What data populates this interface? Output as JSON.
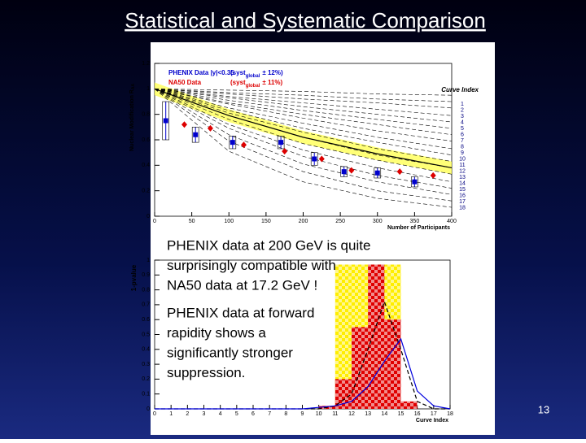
{
  "slide": {
    "title": "Statistical and Systematic Comparison",
    "page_number": "13",
    "annotations": [
      {
        "lines": [
          "PHENIX data at 200 GeV is quite",
          "surprisingly compatible with",
          "NA50 data at 17.2 GeV !"
        ]
      },
      {
        "lines": [
          "PHENIX data at forward",
          "rapidity shows a",
          "significantly stronger",
          "suppression."
        ]
      }
    ]
  },
  "chart_data": [
    {
      "type": "scatter",
      "x_label": "Number of Participants",
      "y_label": "Nuclear Modification R",
      "y_label_sub": "AA",
      "xlim": [
        0,
        400
      ],
      "ylim": [
        0,
        1.2
      ],
      "xticks": [
        0,
        50,
        100,
        150,
        200,
        250,
        300,
        350,
        400
      ],
      "yticks": [
        0,
        0.2,
        0.4,
        0.6,
        0.8,
        1,
        1.2
      ],
      "series": [
        {
          "name": "PHENIX Data |y|<0.35",
          "color": "#0000cc",
          "marker": "square",
          "x": [
            15,
            55,
            105,
            170,
            215,
            255,
            300,
            350
          ],
          "values": [
            0.75,
            0.64,
            0.58,
            0.58,
            0.45,
            0.35,
            0.34,
            0.27
          ],
          "errors": [
            0.15,
            0.06,
            0.05,
            0.05,
            0.05,
            0.04,
            0.04,
            0.04
          ]
        },
        {
          "name": "NA50 Data",
          "color": "#dd0000",
          "marker": "diamond",
          "x": [
            40,
            75,
            120,
            175,
            225,
            265,
            330,
            375
          ],
          "values": [
            0.72,
            0.69,
            0.56,
            0.51,
            0.45,
            0.36,
            0.35,
            0.32
          ]
        }
      ],
      "legend_notes": [
        {
          "text": "(syst",
          "sub": "global",
          "rest": "± 12%)"
        },
        {
          "text": "(syst",
          "sub": "global",
          "rest": "± 11%)"
        }
      ],
      "fit": {
        "x": [
          0,
          100,
          200,
          300,
          400
        ],
        "values": [
          1,
          0.79,
          0.62,
          0.49,
          0.38
        ],
        "band_lower": [
          0.95,
          0.74,
          0.57,
          0.44,
          0.33
        ],
        "band_upper": [
          1.05,
          0.84,
          0.67,
          0.54,
          0.43
        ],
        "color": "#000000",
        "band_color": "#ffff55"
      },
      "curves_title": "Curve Index",
      "curves": {
        "x": [
          0,
          100,
          200,
          300,
          400
        ],
        "color": "#000000",
        "label_color": "#000080",
        "series": [
          {
            "name": "1",
            "values": [
              1,
              0.99,
              0.98,
              0.96,
              0.95
            ]
          },
          {
            "name": "2",
            "values": [
              1,
              0.97,
              0.95,
              0.92,
              0.9
            ]
          },
          {
            "name": "3",
            "values": [
              1,
              0.96,
              0.92,
              0.89,
              0.85
            ]
          },
          {
            "name": "4",
            "values": [
              1,
              0.94,
              0.89,
              0.84,
              0.79
            ]
          },
          {
            "name": "5",
            "values": [
              1,
              0.93,
              0.86,
              0.8,
              0.74
            ]
          },
          {
            "name": "6",
            "values": [
              1,
              0.91,
              0.83,
              0.76,
              0.69
            ]
          },
          {
            "name": "7",
            "values": [
              1,
              0.89,
              0.8,
              0.72,
              0.64
            ]
          },
          {
            "name": "8",
            "values": [
              1,
              0.88,
              0.77,
              0.67,
              0.59
            ]
          },
          {
            "name": "9",
            "values": [
              1,
              0.85,
              0.73,
              0.62,
              0.53
            ]
          },
          {
            "name": "10",
            "values": [
              1,
              0.83,
              0.69,
              0.58,
              0.48
            ]
          },
          {
            "name": "11",
            "values": [
              1,
              0.81,
              0.66,
              0.53,
              0.43
            ]
          },
          {
            "name": "12",
            "values": [
              1,
              0.79,
              0.62,
              0.48,
              0.38
            ]
          },
          {
            "name": "13",
            "values": [
              1,
              0.76,
              0.57,
              0.44,
              0.33
            ]
          },
          {
            "name": "14",
            "values": [
              1,
              0.72,
              0.52,
              0.38,
              0.27
            ]
          },
          {
            "name": "15",
            "values": [
              1,
              0.69,
              0.47,
              0.32,
              0.22
            ]
          },
          {
            "name": "16",
            "values": [
              1,
              0.64,
              0.41,
              0.27,
              0.17
            ]
          },
          {
            "name": "17",
            "values": [
              1,
              0.59,
              0.35,
              0.2,
              0.12
            ]
          },
          {
            "name": "18",
            "values": [
              1,
              0.51,
              0.27,
              0.14,
              0.07
            ]
          }
        ]
      }
    },
    {
      "type": "histogram",
      "x_label": "Curve Index",
      "y_label": "1-pvalue",
      "xlim": [
        0,
        18
      ],
      "ylim": [
        0,
        1
      ],
      "xticks": [
        0,
        1,
        2,
        3,
        4,
        5,
        6,
        7,
        8,
        9,
        10,
        11,
        12,
        13,
        14,
        15,
        16,
        17,
        18
      ],
      "yticks": [
        0,
        0.1,
        0.2,
        0.3,
        0.4,
        0.5,
        0.6,
        0.7,
        0.8,
        0.9,
        1
      ],
      "series": [
        {
          "type": "bar",
          "color": "#ffee00",
          "x": [
            11,
            12,
            13,
            14
          ],
          "values": [
            0.97,
            0.97,
            0.97,
            0.97
          ]
        },
        {
          "type": "bar",
          "color": "#e00000",
          "x": [
            10,
            11,
            12,
            13,
            14,
            15
          ],
          "values": [
            0.02,
            0.2,
            0.55,
            0.97,
            0.6,
            0.05
          ]
        },
        {
          "type": "line",
          "color": "#000000",
          "dashed": true,
          "x": [
            0,
            1,
            2,
            3,
            4,
            5,
            6,
            7,
            8,
            9,
            10,
            11,
            12,
            13,
            14,
            15,
            16,
            17,
            18
          ],
          "values": [
            0,
            0,
            0,
            0,
            0,
            0,
            0,
            0,
            0,
            0,
            0,
            0.02,
            0.1,
            0.4,
            0.72,
            0.4,
            0.05,
            0,
            0
          ]
        },
        {
          "type": "line",
          "color": "#0000dd",
          "dashed": false,
          "x": [
            0,
            1,
            2,
            3,
            4,
            5,
            6,
            7,
            8,
            9,
            10,
            11,
            12,
            13,
            14,
            15,
            16,
            17,
            18
          ],
          "values": [
            0,
            0,
            0,
            0,
            0,
            0,
            0,
            0,
            0,
            0,
            0.01,
            0.02,
            0.05,
            0.15,
            0.32,
            0.47,
            0.12,
            0.02,
            0
          ]
        }
      ]
    }
  ]
}
